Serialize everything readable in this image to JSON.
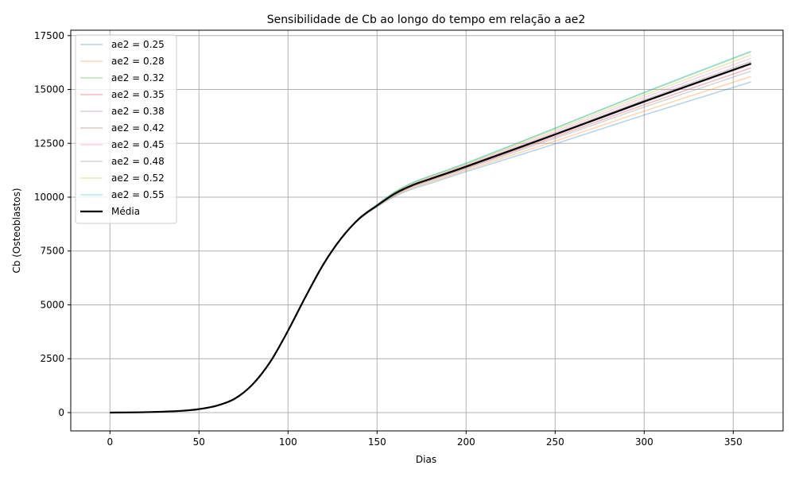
{
  "chart_data": {
    "type": "line",
    "title": "Sensibilidade de Cb ao longo do tempo em relação a ae2",
    "xlabel": "Dias",
    "ylabel": "Cb (Osteoblastos)",
    "xlim": [
      -22,
      378
    ],
    "ylim": [
      -850,
      17750
    ],
    "xticks": [
      0,
      50,
      100,
      150,
      200,
      250,
      300,
      350
    ],
    "yticks": [
      0,
      2500,
      5000,
      7500,
      10000,
      12500,
      15000,
      17500
    ],
    "grid": true,
    "legend_position": "top-left",
    "x": [
      0,
      20,
      40,
      50,
      60,
      70,
      80,
      90,
      100,
      110,
      120,
      130,
      140,
      150,
      160,
      170,
      180,
      200,
      250,
      300,
      360
    ],
    "base_values": [
      0,
      20,
      80,
      160,
      320,
      640,
      1300,
      2350,
      3800,
      5400,
      6900,
      8100,
      9000,
      9600,
      10100,
      10450,
      10700,
      11200,
      12500,
      13850,
      15400
    ],
    "series": [
      {
        "name": "ae2 = 0.25",
        "color": "#1f77b4",
        "end_value": 15350,
        "divergence": 0.0
      },
      {
        "name": "ae2 = 0.28",
        "color": "#ff7f0e",
        "end_value": 15600,
        "divergence": 0.18
      },
      {
        "name": "ae2 = 0.32",
        "color": "#2ca02c",
        "end_value": 16750,
        "divergence": 1.0
      },
      {
        "name": "ae2 = 0.35",
        "color": "#d62728",
        "end_value": 16000,
        "divergence": 0.47
      },
      {
        "name": "ae2 = 0.38",
        "color": "#9467bd",
        "end_value": 16150,
        "divergence": 0.57
      },
      {
        "name": "ae2 = 0.42",
        "color": "#8c564b",
        "end_value": 16300,
        "divergence": 0.68
      },
      {
        "name": "ae2 = 0.45",
        "color": "#e377c2",
        "end_value": 16450,
        "divergence": 0.78
      },
      {
        "name": "ae2 = 0.48",
        "color": "#7f7f7f",
        "end_value": 15850,
        "divergence": 0.36
      },
      {
        "name": "ae2 = 0.52",
        "color": "#bcbd22",
        "end_value": 16600,
        "divergence": 0.89
      },
      {
        "name": "ae2 = 0.55",
        "color": "#17becf",
        "end_value": 16780,
        "divergence": 1.02
      }
    ],
    "mean_series": {
      "name": "Média",
      "color": "#000000",
      "end_value": 16200,
      "divergence": 0.61
    }
  }
}
